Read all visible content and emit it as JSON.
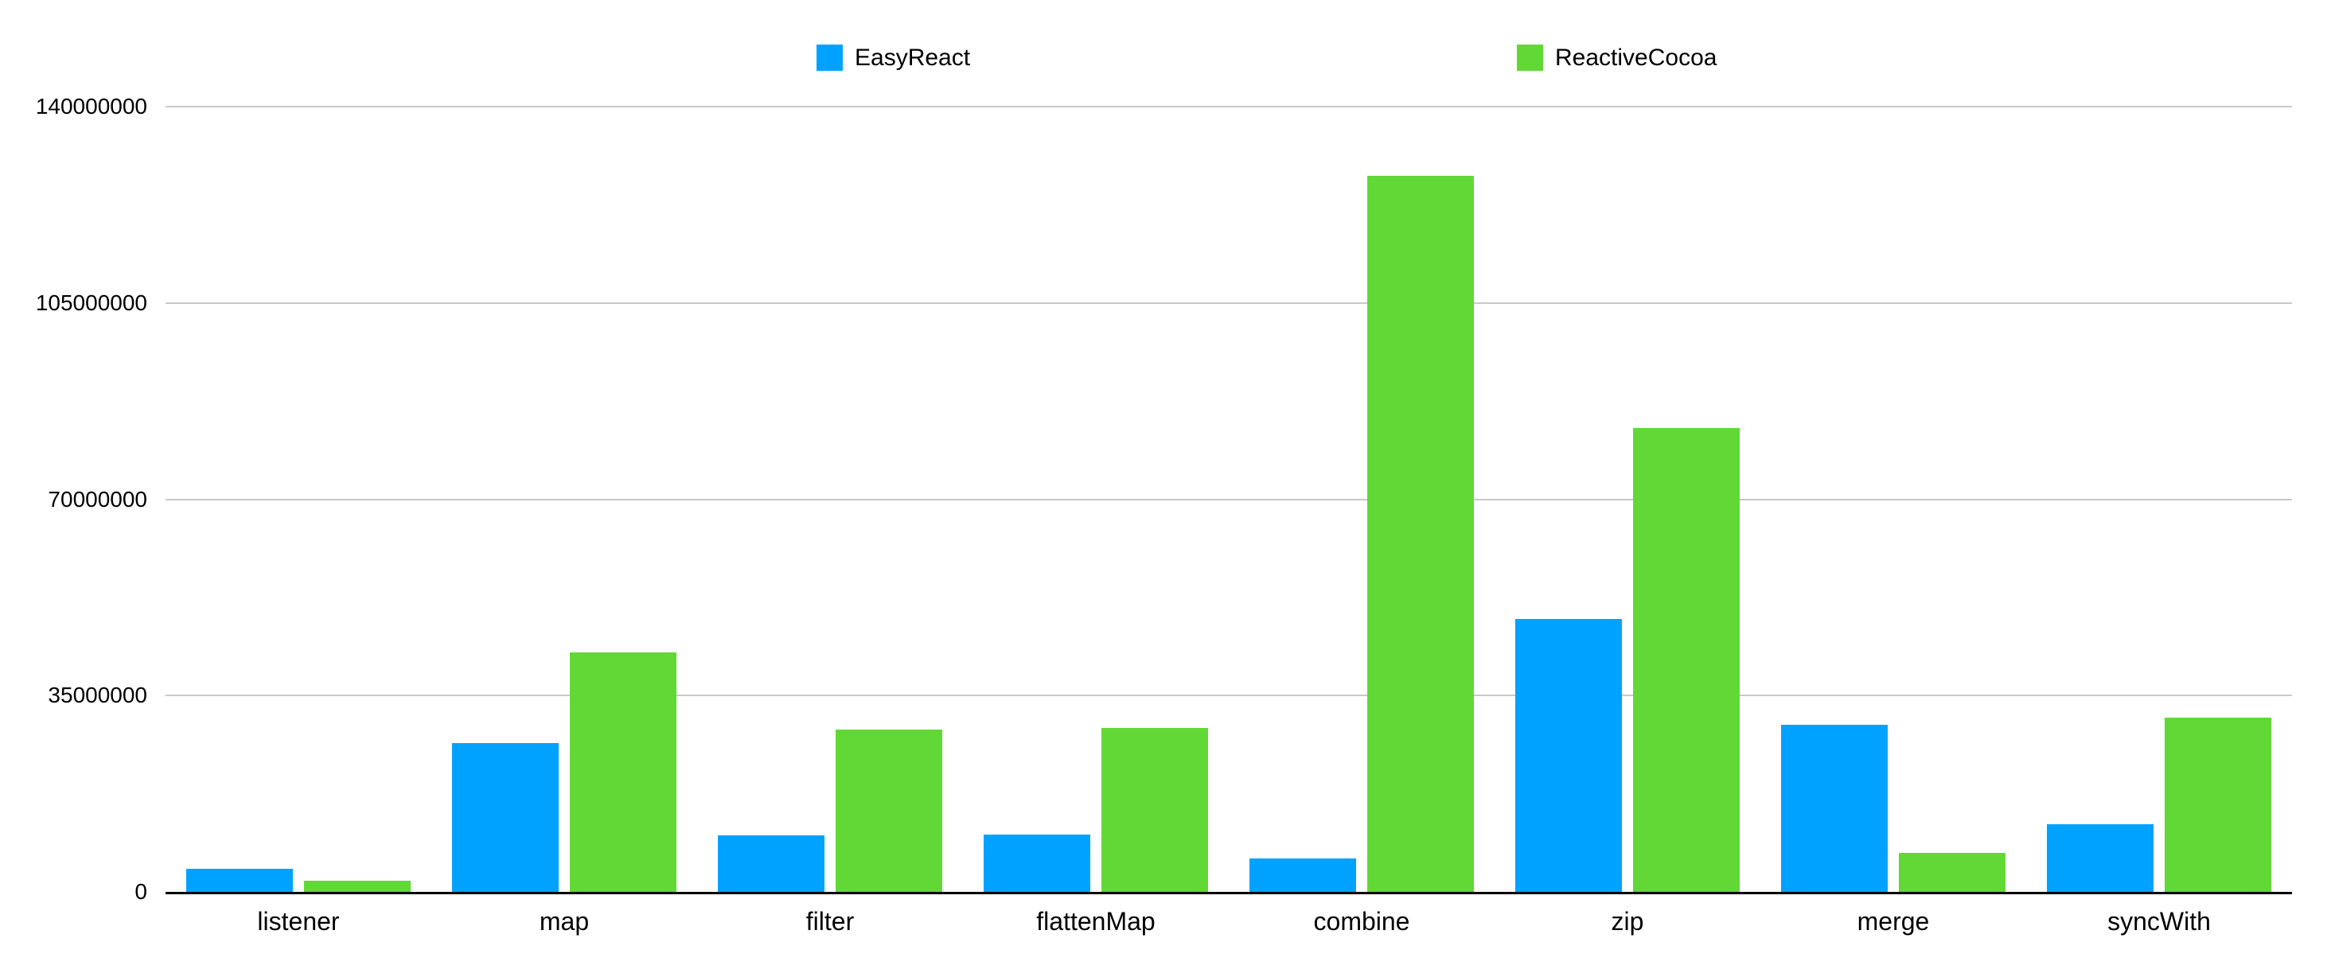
{
  "chart_data": {
    "type": "bar",
    "title": "",
    "categories": [
      "listener",
      "map",
      "filter",
      "flattenMap",
      "combine",
      "zip",
      "merge",
      "syncWith"
    ],
    "series": [
      {
        "name": "EasyReact",
        "color": "#00A2FF",
        "values": [
          4100000,
          26500000,
          10000000,
          10200000,
          5900000,
          48600000,
          29800000,
          12100000
        ]
      },
      {
        "name": "ReactiveCocoa",
        "color": "#61D836",
        "values": [
          2000000,
          42700000,
          29000000,
          29200000,
          127700000,
          82700000,
          7000000,
          31000000
        ]
      }
    ],
    "ylim": [
      0,
      140000000
    ],
    "yticks": [
      0,
      35000000,
      70000000,
      105000000,
      140000000
    ],
    "ytick_labels": [
      "0",
      "35000000",
      "70000000",
      "105000000",
      "140000000"
    ],
    "grid": true,
    "legend_position": "top"
  },
  "colors": {
    "easyreact": "#00A2FF",
    "reactivecocoa": "#61D836",
    "gridline": "#c9c9c9",
    "axis": "#000000",
    "text": "#000000",
    "background": "#ffffff"
  }
}
